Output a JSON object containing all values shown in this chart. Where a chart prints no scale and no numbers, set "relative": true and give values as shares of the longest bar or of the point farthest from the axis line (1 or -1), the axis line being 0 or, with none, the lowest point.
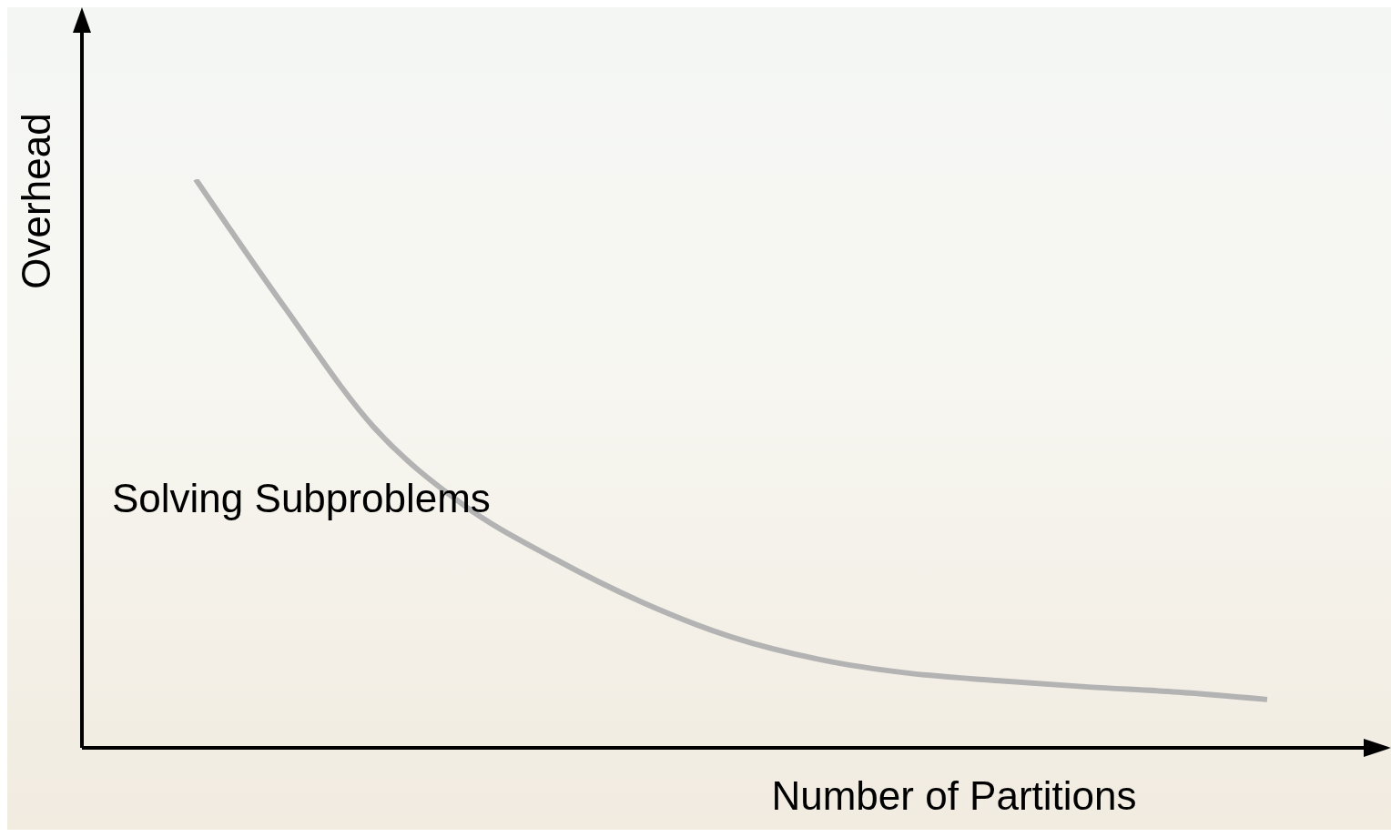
{
  "chart_data": {
    "type": "line",
    "xlabel": "Number of Partitions",
    "ylabel": "Overhead",
    "relative": true,
    "marker": "none",
    "grid": false,
    "categories": [
      null,
      null,
      null,
      null,
      null,
      null,
      null,
      null,
      null,
      null,
      null,
      null,
      null
    ],
    "series": [
      {
        "name": "Solving Subproblems",
        "color": "#b3b3b3",
        "values": [
          1,
          0.774,
          0.563,
          0.427,
          0.334,
          0.256,
          0.195,
          0.155,
          0.131,
          0.118,
          0.107,
          0.098,
          0.085
        ]
      }
    ]
  }
}
